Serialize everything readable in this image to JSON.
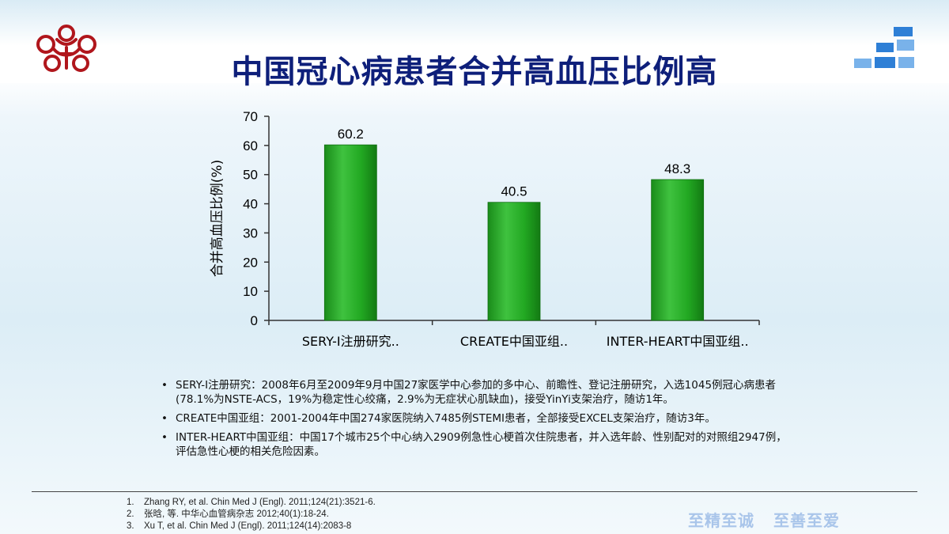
{
  "slide": {
    "title": "中国冠心病患者合并高血压比例高",
    "motto": [
      "至精至诚",
      "至善至爱"
    ]
  },
  "chart_data": {
    "type": "bar",
    "categories": [
      "SERY-Ⅰ注册研究..",
      "CREATE中国亚组..",
      "INTER-HEART中国亚组.."
    ],
    "values": [
      60.2,
      40.5,
      48.3
    ],
    "value_labels": [
      "60.2",
      "40.5",
      "48.3"
    ],
    "ylabel": "合并高血压比例(%)",
    "ylim": [
      0,
      70
    ],
    "yticks": [
      0,
      10,
      20,
      30,
      40,
      50,
      60,
      70
    ],
    "grid": false,
    "bar_color": "#22a822"
  },
  "notes": [
    "SERY-Ⅰ注册研究：2008年6月至2009年9月中国27家医学中心参加的多中心、前瞻性、登记注册研究，入选1045例冠心病患者(78.1%为NSTE-ACS，19%为稳定性心绞痛，2.9%为无症状心肌缺血)，接受YinYi支架治疗，随访1年。",
    "CREATE中国亚组：2001-2004年中国274家医院纳入7485例STEMI患者，全部接受EXCEL支架治疗，随访3年。",
    "INTER-HEART中国亚组：中国17个城市25个中心纳入2909例急性心梗首次住院患者，并入选年龄、性别配对的对照组2947例，评估急性心梗的相关危险因素。"
  ],
  "references": [
    {
      "num": "1.",
      "text": "Zhang RY, et al. Chin Med J (Engl). 2011;124(21):3521-6."
    },
    {
      "num": "2.",
      "text": "张晗, 等. 中华心血管病杂志 2012;40(1):18-24."
    },
    {
      "num": "3.",
      "text": "Xu T, et al. Chin Med J (Engl). 2011;124(14):2083-8"
    }
  ]
}
